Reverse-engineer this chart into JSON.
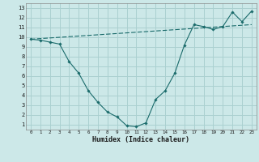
{
  "line1_x": [
    0,
    1,
    2,
    3,
    4,
    5,
    6,
    7,
    8,
    9,
    10,
    11,
    12,
    13,
    14,
    15,
    16,
    17,
    18,
    19,
    20,
    21,
    22,
    23
  ],
  "line1_y": [
    9.8,
    9.7,
    9.5,
    9.3,
    7.5,
    6.3,
    4.5,
    3.3,
    2.3,
    1.8,
    0.9,
    0.8,
    1.2,
    3.6,
    4.5,
    6.3,
    9.2,
    11.3,
    11.1,
    10.8,
    11.1,
    12.6,
    11.6,
    12.7
  ],
  "line2_x": [
    0,
    23
  ],
  "line2_y": [
    9.8,
    11.3
  ],
  "color": "#1a6b6b",
  "background_color": "#cce8e8",
  "grid_color": "#aad0d0",
  "xlabel": "Humidex (Indice chaleur)",
  "xlim": [
    -0.5,
    23.5
  ],
  "ylim": [
    0.5,
    13.5
  ],
  "yticks": [
    1,
    2,
    3,
    4,
    5,
    6,
    7,
    8,
    9,
    10,
    11,
    12,
    13
  ],
  "xticks": [
    0,
    1,
    2,
    3,
    4,
    5,
    6,
    7,
    8,
    9,
    10,
    11,
    12,
    13,
    14,
    15,
    16,
    17,
    18,
    19,
    20,
    21,
    22,
    23
  ]
}
